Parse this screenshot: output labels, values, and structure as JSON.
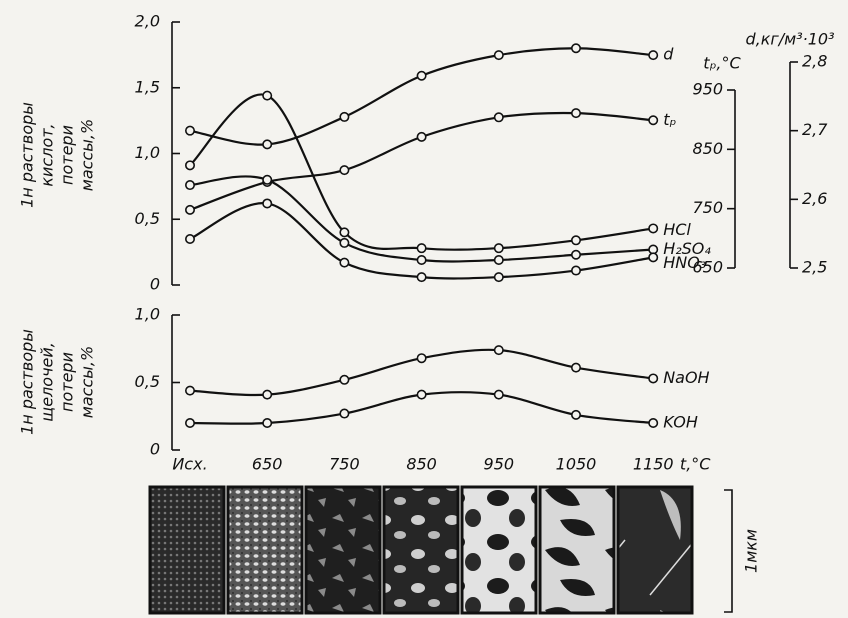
{
  "chart_data": [
    {
      "type": "line",
      "ylabel": [
        "1н растворы",
        "кислот,",
        "потери",
        "массы,%"
      ],
      "ylim": [
        0,
        2
      ],
      "yticks": [
        0,
        {
          "value": 0.5,
          "label": "0,5"
        },
        {
          "value": 1,
          "label": "1,0"
        },
        {
          "value": 1.5,
          "label": "1,5"
        },
        {
          "value": 2,
          "label": "2,0"
        }
      ],
      "y2label": "tₚ,°C",
      "y2lim": [
        650,
        950
      ],
      "y2ticks": [
        650,
        750,
        850,
        950
      ],
      "y3label": "d,кг/м³·10³",
      "y3lim": [
        2.5,
        2.8
      ],
      "y3ticks": [
        {
          "value": 2.5,
          "label": "2,5"
        },
        {
          "value": 2.6,
          "label": "2,6"
        },
        {
          "value": 2.7,
          "label": "2,7"
        },
        {
          "value": 2.8,
          "label": "2,8"
        }
      ],
      "series": [
        {
          "name": "d",
          "color": "#111111",
          "axis": "y3",
          "values": [
            2.7,
            2.68,
            2.72,
            2.78,
            2.81,
            2.82,
            2.81
          ]
        },
        {
          "name": "tₚ",
          "color": "#111111",
          "axis": "y2",
          "values": [
            748,
            795,
            815,
            871,
            904,
            911,
            899
          ]
        },
        {
          "name": "HCl",
          "color": "#111111",
          "values": [
            0.91,
            1.44,
            0.4,
            0.28,
            0.28,
            0.34,
            0.43
          ]
        },
        {
          "name": "H₂SO₄",
          "color": "#111111",
          "values": [
            0.76,
            0.8,
            0.32,
            0.19,
            0.19,
            0.23,
            0.27
          ]
        },
        {
          "name": "HNO₃",
          "color": "#111111",
          "values": [
            0.35,
            0.62,
            0.17,
            0.06,
            0.06,
            0.11,
            0.21
          ]
        }
      ]
    },
    {
      "type": "line",
      "ylabel": [
        "1н растворы",
        "щелочей,",
        "потери",
        "массы,%"
      ],
      "xlabel": "t,°C",
      "categories": [
        "Исх.",
        "650",
        "750",
        "850",
        "950",
        "1050",
        "1150"
      ],
      "ylim": [
        0,
        1
      ],
      "yticks": [
        0,
        {
          "value": 0.5,
          "label": "0,5"
        },
        {
          "value": 1,
          "label": "1,0"
        }
      ],
      "series": [
        {
          "name": "NaOH",
          "color": "#111111",
          "values": [
            0.44,
            0.41,
            0.52,
            0.68,
            0.74,
            0.61,
            0.53
          ]
        },
        {
          "name": "KOH",
          "color": "#111111",
          "values": [
            0.2,
            0.2,
            0.27,
            0.41,
            0.41,
            0.26,
            0.2
          ]
        }
      ]
    }
  ],
  "micrograph": {
    "scale_label": "1мкм"
  }
}
